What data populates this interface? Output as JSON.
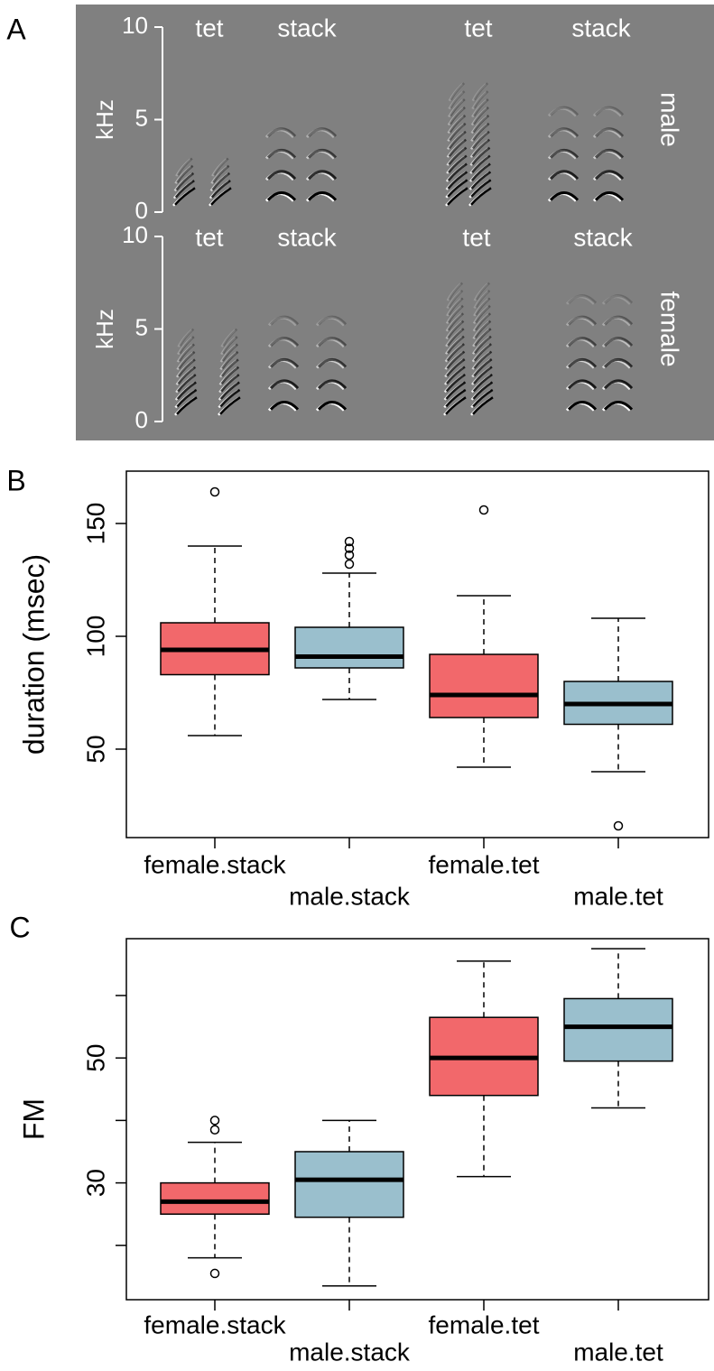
{
  "chart_data": [
    {
      "type": "spectrogram",
      "panel_label": "A",
      "ylabel": "kHz",
      "ylim": [
        0,
        10
      ],
      "yticks": [
        0,
        5,
        10
      ],
      "columns": [
        "tet",
        "stack",
        "tet",
        "stack"
      ],
      "row_label": "male"
    },
    {
      "type": "spectrogram",
      "ylabel": "kHz",
      "ylim": [
        0,
        10
      ],
      "yticks": [
        0,
        5,
        10
      ],
      "columns": [
        "tet",
        "stack",
        "tet",
        "stack"
      ],
      "row_label": "female"
    },
    {
      "type": "boxplot",
      "panel_label": "B",
      "ylabel": "duration (msec)",
      "categories": [
        "female.stack",
        "male.stack",
        "female.tet",
        "male.tet"
      ],
      "colors": [
        "#f2686b",
        "#9abfcd",
        "#f2686b",
        "#9abfcd"
      ],
      "ylim": [
        10.8,
        173.2
      ],
      "yticks": [
        50,
        100,
        150
      ],
      "boxes": [
        {
          "low": 56,
          "q1": 83,
          "median": 94,
          "q3": 106,
          "high": 140,
          "outliers": [
            164
          ]
        },
        {
          "low": 72,
          "q1": 86,
          "median": 91,
          "q3": 104,
          "high": 128,
          "outliers": [
            132,
            136,
            139,
            142
          ]
        },
        {
          "low": 42,
          "q1": 64,
          "median": 74,
          "q3": 92,
          "high": 118,
          "outliers": [
            156
          ]
        },
        {
          "low": 40,
          "q1": 61,
          "median": 70,
          "q3": 80,
          "high": 108,
          "outliers": [
            16
          ]
        }
      ]
    },
    {
      "type": "boxplot",
      "panel_label": "C",
      "ylabel": "FM",
      "categories": [
        "female.stack",
        "male.stack",
        "female.tet",
        "male.tet"
      ],
      "colors": [
        "#f2686b",
        "#9abfcd",
        "#f2686b",
        "#9abfcd"
      ],
      "ylim": [
        11.3,
        69.1
      ],
      "yticks": [
        30,
        50
      ],
      "yticks_minor": [
        20,
        40,
        60
      ],
      "boxes": [
        {
          "low": 18,
          "q1": 25,
          "median": 27,
          "q3": 30,
          "high": 36.5,
          "outliers": [
            40,
            38.5,
            15.5
          ]
        },
        {
          "low": 13.5,
          "q1": 24.5,
          "median": 30.5,
          "q3": 35,
          "high": 40,
          "outliers": []
        },
        {
          "low": 31,
          "q1": 44,
          "median": 50,
          "q3": 56.5,
          "high": 65.5,
          "outliers": []
        },
        {
          "low": 42,
          "q1": 49.5,
          "median": 55,
          "q3": 59.5,
          "high": 67.5,
          "outliers": []
        }
      ]
    }
  ]
}
